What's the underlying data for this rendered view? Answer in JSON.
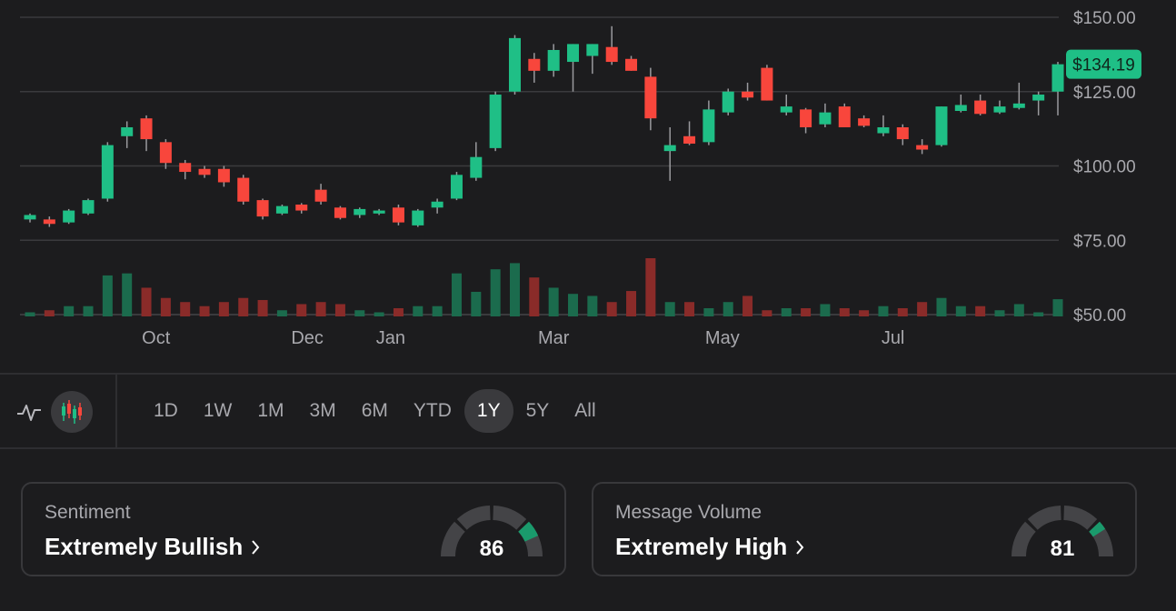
{
  "chart_data": {
    "type": "candlestick",
    "y_ticks": [
      "$150.00",
      "$125.00",
      "$100.00",
      "$75.00",
      "$50.00"
    ],
    "y_tick_values": [
      150,
      125,
      100,
      75,
      50
    ],
    "ylim": [
      50,
      150
    ],
    "x_tick_labels": [
      "Oct",
      "Dec",
      "Jan",
      "Mar",
      "May",
      "Jul"
    ],
    "x_tick_index": [
      6.5,
      14.3,
      18.6,
      27,
      35.7,
      44.5
    ],
    "last_price_label": "$134.19",
    "last_price": 134.2,
    "up_color": "#1fbf86",
    "down_color": "#f8463c",
    "candles": [
      {
        "o": 82,
        "h": 84,
        "l": 81,
        "c": 83.5
      },
      {
        "o": 82,
        "h": 83,
        "l": 79.5,
        "c": 80.5
      },
      {
        "o": 81,
        "h": 85.5,
        "l": 80.5,
        "c": 85
      },
      {
        "o": 84,
        "h": 89,
        "l": 83.5,
        "c": 88.5
      },
      {
        "o": 89,
        "h": 108,
        "l": 88,
        "c": 107
      },
      {
        "o": 110,
        "h": 115,
        "l": 106,
        "c": 113
      },
      {
        "o": 116,
        "h": 117,
        "l": 105,
        "c": 109
      },
      {
        "o": 108,
        "h": 109,
        "l": 99,
        "c": 101
      },
      {
        "o": 101,
        "h": 102,
        "l": 95.5,
        "c": 98
      },
      {
        "o": 99,
        "h": 100,
        "l": 96,
        "c": 97
      },
      {
        "o": 99,
        "h": 100,
        "l": 93,
        "c": 94.5
      },
      {
        "o": 96,
        "h": 97,
        "l": 87,
        "c": 88
      },
      {
        "o": 88.5,
        "h": 89,
        "l": 82,
        "c": 83
      },
      {
        "o": 84,
        "h": 87,
        "l": 83.5,
        "c": 86.5
      },
      {
        "o": 87,
        "h": 87.5,
        "l": 84,
        "c": 85
      },
      {
        "o": 92,
        "h": 94,
        "l": 87,
        "c": 88
      },
      {
        "o": 86,
        "h": 86.5,
        "l": 82,
        "c": 82.5
      },
      {
        "o": 83.5,
        "h": 86,
        "l": 82.5,
        "c": 85.5
      },
      {
        "o": 84,
        "h": 85.5,
        "l": 83.5,
        "c": 85
      },
      {
        "o": 86,
        "h": 87,
        "l": 80,
        "c": 81
      },
      {
        "o": 80,
        "h": 85.5,
        "l": 79.5,
        "c": 85
      },
      {
        "o": 86,
        "h": 89,
        "l": 84,
        "c": 88
      },
      {
        "o": 89,
        "h": 98,
        "l": 88.5,
        "c": 97
      },
      {
        "o": 96,
        "h": 108,
        "l": 95,
        "c": 103
      },
      {
        "o": 106,
        "h": 125,
        "l": 105,
        "c": 124
      },
      {
        "o": 125,
        "h": 144,
        "l": 124,
        "c": 143
      },
      {
        "o": 136,
        "h": 138,
        "l": 128,
        "c": 132
      },
      {
        "o": 132,
        "h": 141,
        "l": 130,
        "c": 139
      },
      {
        "o": 135,
        "h": 141,
        "l": 125,
        "c": 141
      },
      {
        "o": 137,
        "h": 141,
        "l": 131,
        "c": 141
      },
      {
        "o": 140,
        "h": 147,
        "l": 134,
        "c": 135
      },
      {
        "o": 136,
        "h": 137,
        "l": 132,
        "c": 132
      },
      {
        "o": 130,
        "h": 133,
        "l": 112,
        "c": 116
      },
      {
        "o": 105,
        "h": 113,
        "l": 95,
        "c": 107
      },
      {
        "o": 110,
        "h": 115,
        "l": 107,
        "c": 107.5
      },
      {
        "o": 108,
        "h": 122,
        "l": 107,
        "c": 119
      },
      {
        "o": 118,
        "h": 126,
        "l": 117,
        "c": 125
      },
      {
        "o": 125,
        "h": 128,
        "l": 122,
        "c": 123
      },
      {
        "o": 133,
        "h": 134,
        "l": 122,
        "c": 122
      },
      {
        "o": 118,
        "h": 124,
        "l": 117,
        "c": 120
      },
      {
        "o": 119,
        "h": 119.5,
        "l": 111,
        "c": 113
      },
      {
        "o": 114,
        "h": 121,
        "l": 113,
        "c": 118
      },
      {
        "o": 120,
        "h": 121,
        "l": 113,
        "c": 113
      },
      {
        "o": 116,
        "h": 117,
        "l": 113,
        "c": 113.5
      },
      {
        "o": 111,
        "h": 117,
        "l": 110,
        "c": 113
      },
      {
        "o": 113,
        "h": 114,
        "l": 107,
        "c": 109
      },
      {
        "o": 107,
        "h": 109,
        "l": 104,
        "c": 105.5
      },
      {
        "o": 107,
        "h": 120,
        "l": 106.5,
        "c": 120
      },
      {
        "o": 118.5,
        "h": 124,
        "l": 118,
        "c": 120.5
      },
      {
        "o": 122,
        "h": 124,
        "l": 117,
        "c": 117.5
      },
      {
        "o": 118,
        "h": 122,
        "l": 117.5,
        "c": 120
      },
      {
        "o": 119.5,
        "h": 128,
        "l": 119,
        "c": 121
      },
      {
        "o": 122,
        "h": 125,
        "l": 117,
        "c": 124
      },
      {
        "o": 125,
        "h": 135,
        "l": 117,
        "c": 134.2
      }
    ],
    "volume": [
      1,
      1.5,
      2.5,
      2.5,
      10,
      10.5,
      7,
      4.5,
      3.5,
      2.5,
      3.5,
      4.5,
      4,
      1.5,
      3,
      3.5,
      3,
      1.5,
      1,
      2,
      2.5,
      2.5,
      10.5,
      6,
      11.5,
      13,
      9.5,
      7,
      5.5,
      5,
      3.5,
      6.2,
      14.2,
      3.5,
      3.5,
      2,
      3.5,
      5,
      1.5,
      2,
      2,
      3,
      2,
      1.5,
      2.5,
      2,
      3.5,
      4.5,
      2.5,
      2.5,
      1.5,
      3,
      1,
      4.2
    ]
  },
  "toolbar": {
    "chart_type_icons": [
      "line-chart-icon",
      "candlestick-icon"
    ],
    "active_chart_type": "candlestick-icon",
    "ranges": [
      "1D",
      "1W",
      "1M",
      "3M",
      "6M",
      "YTD",
      "1Y",
      "5Y",
      "All"
    ],
    "active_range": "1Y"
  },
  "cards": [
    {
      "label": "Sentiment",
      "value": "Extremely Bullish",
      "score": "86",
      "score_value": 86
    },
    {
      "label": "Message Volume",
      "value": "Extremely High",
      "score": "81",
      "score_value": 81
    }
  ],
  "colors": {
    "accent_green": "#1a9a6c",
    "gauge_track": "#444447"
  }
}
